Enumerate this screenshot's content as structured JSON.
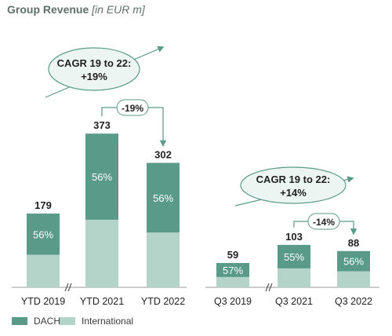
{
  "colors": {
    "dach": "#5a9a88",
    "international": "#b4d3c9",
    "ellipse_fill": "#edf5f2",
    "ellipse_stroke": "#5a9a88"
  },
  "header": {
    "title": "Group Revenue",
    "unit": "[in EUR m]"
  },
  "chart_data": [
    {
      "type": "bar",
      "stacked": true,
      "title": "Group Revenue [in EUR m]",
      "categories": [
        "YTD 2019",
        "YTD 2021",
        "YTD 2022"
      ],
      "totals": [
        179,
        373,
        302
      ],
      "dach_share_labels": [
        "56%",
        "56%",
        "56%"
      ],
      "series": [
        {
          "name": "DACH",
          "values": [
            100,
            209,
            169
          ]
        },
        {
          "name": "International",
          "values": [
            79,
            164,
            133
          ]
        }
      ],
      "axis_break_after": "YTD 2019",
      "change_annotation": {
        "from": "YTD 2021",
        "to": "YTD 2022",
        "label": "-19%"
      },
      "cagr_annotation": {
        "line1": "CAGR 19 to 22:",
        "line2": "+19%"
      }
    },
    {
      "type": "bar",
      "stacked": true,
      "categories": [
        "Q3 2019",
        "Q3 2021",
        "Q3 2022"
      ],
      "totals": [
        59,
        103,
        88
      ],
      "dach_share_labels": [
        "57%",
        "55%",
        "56%"
      ],
      "series": [
        {
          "name": "DACH",
          "values": [
            34,
            57,
            49
          ]
        },
        {
          "name": "International",
          "values": [
            25,
            46,
            39
          ]
        }
      ],
      "axis_break_after": "Q3 2019",
      "change_annotation": {
        "from": "Q3 2021",
        "to": "Q3 2022",
        "label": "-14%"
      },
      "cagr_annotation": {
        "line1": "CAGR 19 to 22:",
        "line2": "+14%"
      }
    }
  ],
  "legend": [
    {
      "label": "DACH"
    },
    {
      "label": "International"
    }
  ]
}
